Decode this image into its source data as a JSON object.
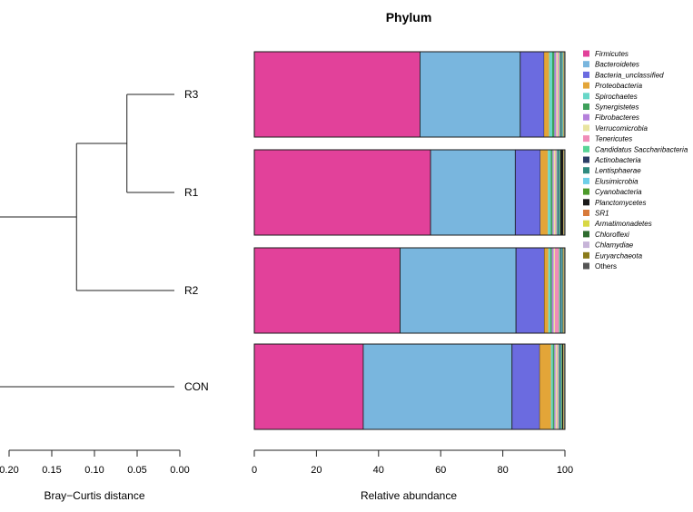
{
  "chart_data": {
    "title": "Phylum",
    "samples": [
      "R3",
      "R1",
      "R2",
      "CON"
    ],
    "series": [
      {
        "name": "Firmicutes",
        "color": "#e2419a",
        "values": [
          53.4,
          56.8,
          46.8,
          35.0
        ]
      },
      {
        "name": "Bacteroidetes",
        "color": "#79b6de",
        "values": [
          32.3,
          27.3,
          37.2,
          47.8
        ]
      },
      {
        "name": "Bacteria_unclassified",
        "color": "#6b6be0",
        "values": [
          7.7,
          8.1,
          9.1,
          8.9
        ]
      },
      {
        "name": "Proteobacteria",
        "color": "#e3a538",
        "values": [
          1.6,
          2.4,
          1.3,
          3.6
        ]
      },
      {
        "name": "Spirochaetes",
        "color": "#68d7c8",
        "values": [
          1.0,
          0.9,
          0.6,
          0.6
        ]
      },
      {
        "name": "Synergistetes",
        "color": "#3ea05a",
        "values": [
          0.7,
          0.6,
          0.5,
          0.5
        ]
      },
      {
        "name": "Fibrobacteres",
        "color": "#b580db",
        "values": [
          0.6,
          0.4,
          0.6,
          0.4
        ]
      },
      {
        "name": "Verrucomicrobia",
        "color": "#e8e4a0",
        "values": [
          0.5,
          0.5,
          0.4,
          0.5
        ]
      },
      {
        "name": "Tenericutes",
        "color": "#f08cb8",
        "values": [
          0.5,
          0.4,
          1.3,
          0.4
        ]
      },
      {
        "name": "Candidatus Saccharibacteria",
        "color": "#58d496",
        "values": [
          0.4,
          0.3,
          0.4,
          0.3
        ]
      },
      {
        "name": "Actinobacteria",
        "color": "#2c3e66",
        "values": [
          0.3,
          0.3,
          0.3,
          0.3
        ]
      },
      {
        "name": "Lentisphaerae",
        "color": "#2f8a7e",
        "values": [
          0.2,
          0.2,
          0.2,
          0.2
        ]
      },
      {
        "name": "Elusimicrobia",
        "color": "#6ecfe8",
        "values": [
          0.2,
          0.2,
          0.2,
          0.2
        ]
      },
      {
        "name": "Cyanobacteria",
        "color": "#4c9a2a",
        "values": [
          0.1,
          0.2,
          0.1,
          0.2
        ]
      },
      {
        "name": "Planctomycetes",
        "color": "#1a1a1a",
        "values": [
          0.1,
          1.0,
          0.2,
          0.4
        ]
      },
      {
        "name": "SR1",
        "color": "#d87a3a",
        "values": [
          0.1,
          0.1,
          0.1,
          0.1
        ]
      },
      {
        "name": "Armatimonadetes",
        "color": "#d8d844",
        "values": [
          0.1,
          0.1,
          0.1,
          0.1
        ]
      },
      {
        "name": "Chloroflexi",
        "color": "#2e6b2e",
        "values": [
          0.1,
          0.1,
          0.1,
          0.1
        ]
      },
      {
        "name": "Chlamydiae",
        "color": "#c7b4d8",
        "values": [
          0.05,
          0.05,
          0.05,
          0.05
        ]
      },
      {
        "name": "Euryarchaeota",
        "color": "#8a7a1a",
        "values": [
          0.05,
          0.05,
          0.05,
          0.05
        ]
      },
      {
        "name": "Others",
        "color": "#555555",
        "values": [
          0.1,
          0.1,
          0.1,
          0.1
        ]
      }
    ],
    "bar_axis": {
      "label": "Relative abundance",
      "range": [
        0,
        100
      ],
      "ticks": [
        0,
        20,
        40,
        60,
        80,
        100
      ]
    },
    "dendrogram": {
      "axis_label": "Bray−Curtis distance",
      "ticks": [
        0.2,
        0.15,
        0.1,
        0.05,
        0.0
      ],
      "tick_labels": [
        "0.20",
        "0.15",
        "0.10",
        "0.05",
        "0.00"
      ],
      "range": [
        0.2,
        0.0
      ],
      "merges": [
        {
          "id": "m1",
          "children": [
            "R3",
            "R1"
          ],
          "height": 0.062
        },
        {
          "id": "m2",
          "children": [
            "m1",
            "R2"
          ],
          "height": 0.121
        },
        {
          "id": "m3",
          "children": [
            "m2",
            "CON"
          ],
          "height": 0.225
        }
      ]
    },
    "legend_placement": "right",
    "grid": false
  }
}
